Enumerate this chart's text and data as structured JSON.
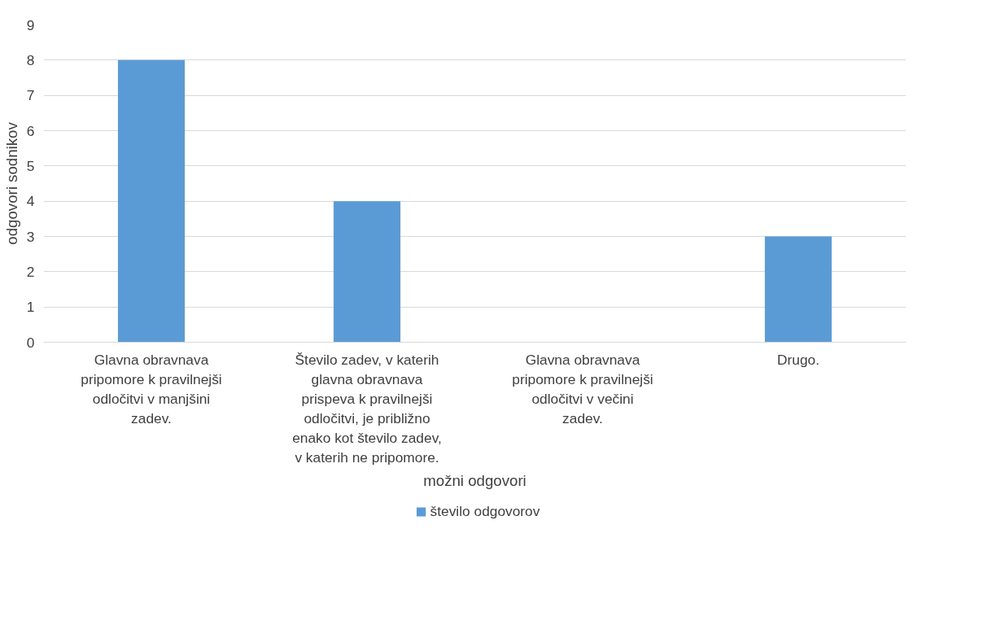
{
  "chart_data": {
    "type": "bar",
    "xlabel": "možni odgovori",
    "ylabel": "odgovori sodnikov",
    "categories": [
      "Glavna obravnava pripomore k pravilnejši odločitvi v manjšini zadev.",
      "Število zadev, v katerih glavna obravnava prispeva k pravilnejši odločitvi, je približno enako kot število zadev, v katerih ne pripomore.",
      "Glavna obravnava pripomore k pravilnejši odločitvi v večini zadev.",
      "Drugo."
    ],
    "series": [
      {
        "name": "število odgovorov",
        "color": "#5b9bd5",
        "values": [
          8,
          4,
          0,
          3
        ]
      }
    ],
    "ylim": [
      0,
      9
    ],
    "yticks": [
      0,
      1,
      2,
      3,
      4,
      5,
      6,
      7,
      8,
      9
    ],
    "grid": "y",
    "legend": "bottom"
  }
}
